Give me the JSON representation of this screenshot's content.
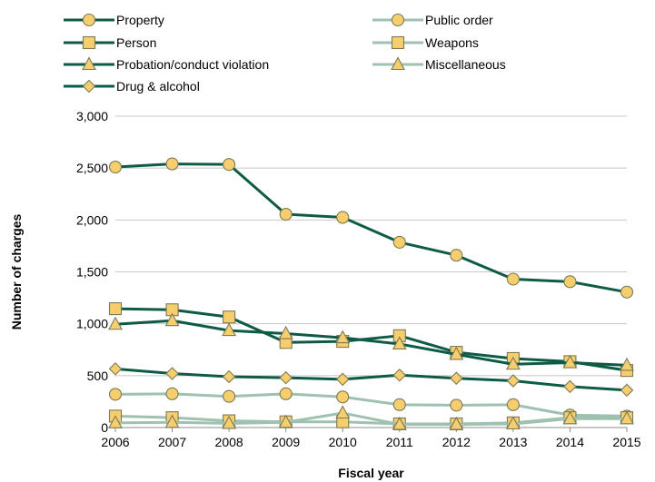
{
  "chart_data": {
    "type": "line",
    "title": "",
    "xlabel": "Fiscal year",
    "ylabel": "Number of charges",
    "ylim": [
      0,
      3000
    ],
    "yticks": [
      0,
      500,
      1000,
      1500,
      2000,
      2500,
      3000
    ],
    "ytick_labels": [
      "0",
      "500",
      "1,000",
      "1,500",
      "2,000",
      "2,500",
      "3,000"
    ],
    "grid": "horizontal",
    "legend_position": "top",
    "categories": [
      "2006",
      "2007",
      "2008",
      "2009",
      "2010",
      "2011",
      "2012",
      "2013",
      "2014",
      "2015"
    ],
    "series": [
      {
        "name": "Property",
        "color": "#0e5b45",
        "marker": "circle",
        "values": [
          2510,
          2540,
          2535,
          2055,
          2025,
          1785,
          1660,
          1430,
          1405,
          1305
        ]
      },
      {
        "name": "Person",
        "color": "#0e5b45",
        "marker": "square",
        "values": [
          1145,
          1135,
          1065,
          820,
          830,
          885,
          725,
          665,
          635,
          550
        ]
      },
      {
        "name": "Probation/conduct violation",
        "color": "#0e5b45",
        "marker": "triangle",
        "values": [
          995,
          1030,
          935,
          905,
          865,
          805,
          705,
          610,
          625,
          600
        ]
      },
      {
        "name": "Drug & alcohol",
        "color": "#0e5b45",
        "marker": "diamond",
        "values": [
          565,
          520,
          490,
          480,
          465,
          505,
          475,
          450,
          395,
          360
        ]
      },
      {
        "name": "Public order",
        "color": "#9fc1b0",
        "marker": "circle",
        "values": [
          320,
          325,
          300,
          325,
          295,
          220,
          215,
          220,
          120,
          110
        ]
      },
      {
        "name": "Weapons",
        "color": "#9fc1b0",
        "marker": "square",
        "values": [
          110,
          95,
          65,
          55,
          55,
          35,
          35,
          45,
          95,
          95
        ]
      },
      {
        "name": "Miscellaneous",
        "color": "#9fc1b0",
        "marker": "triangle",
        "values": [
          45,
          50,
          40,
          50,
          140,
          30,
          30,
          35,
          85,
          85
        ]
      }
    ]
  }
}
